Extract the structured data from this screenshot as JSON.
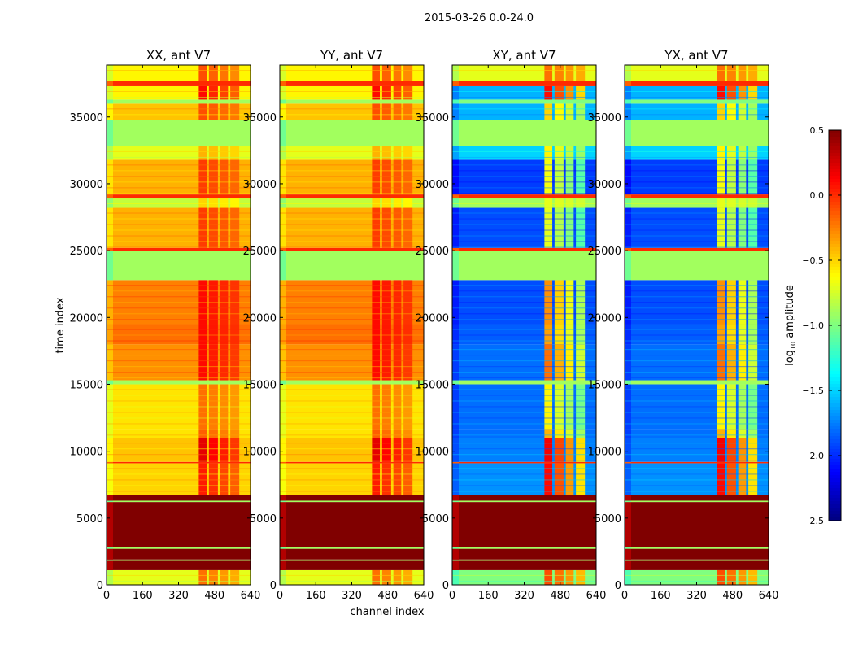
{
  "chart_data": {
    "type": "heatmap",
    "title": "2015-03-26 0.0-24.0",
    "xlabel": "channel index",
    "ylabel": "time index",
    "xlim": [
      0,
      640
    ],
    "ylim": [
      0,
      38880
    ],
    "xticks": [
      "0",
      "160",
      "320",
      "480",
      "640"
    ],
    "xtick_values": [
      0,
      160,
      320,
      480,
      640
    ],
    "yticks": [
      "0",
      "5000",
      "10000",
      "15000",
      "20000",
      "25000",
      "30000",
      "35000"
    ],
    "ytick_values": [
      0,
      5000,
      10000,
      15000,
      20000,
      25000,
      30000,
      35000
    ],
    "panels": [
      {
        "title": "XX, ant V7",
        "kind": "parallel"
      },
      {
        "title": "YY, ant V7",
        "kind": "parallel"
      },
      {
        "title": "XY, ant V7",
        "kind": "cross"
      },
      {
        "title": "YX, ant V7",
        "kind": "cross"
      }
    ],
    "colorbar": {
      "label": "log10 amplitude",
      "label_main": "log",
      "label_sub": "10",
      "label_rest": " amplitude",
      "range": [
        -2.5,
        0.5
      ],
      "ticks": [
        "0.5",
        "0.0",
        "−0.5",
        "−1.0",
        "−1.5",
        "−2.0",
        "−2.5"
      ],
      "tick_values": [
        0.5,
        0,
        -0.5,
        -1,
        -1.5,
        -2,
        -2.5
      ],
      "colormap": "jet"
    },
    "enhanced_channel_blocks": [
      [
        410,
        445
      ],
      [
        455,
        495
      ],
      [
        505,
        540
      ],
      [
        550,
        590
      ]
    ],
    "time_bands": [
      [
        0,
        1100,
        -0.7,
        -1.0,
        0.5,
        0.9
      ],
      [
        1100,
        1800,
        0.5,
        0.5,
        0,
        0
      ],
      [
        1800,
        1900,
        -0.9,
        -0.9,
        0,
        0
      ],
      [
        1900,
        2700,
        0.5,
        0.5,
        0,
        0
      ],
      [
        2700,
        2800,
        -0.9,
        -0.9,
        0,
        0
      ],
      [
        2800,
        6200,
        0.5,
        0.5,
        0,
        0
      ],
      [
        6200,
        6300,
        -0.9,
        -0.9,
        0,
        0
      ],
      [
        6300,
        6700,
        0.5,
        0.5,
        0,
        0
      ],
      [
        6700,
        9100,
        -0.5,
        -1.7,
        0.55,
        1.8
      ],
      [
        9100,
        9200,
        0.0,
        0.0,
        0,
        0
      ],
      [
        9200,
        11000,
        -0.45,
        -1.75,
        0.65,
        1.9
      ],
      [
        11000,
        11600,
        -0.55,
        -1.8,
        0.4,
        1.4
      ],
      [
        11600,
        15000,
        -0.55,
        -1.8,
        0.35,
        1.2
      ],
      [
        15000,
        15300,
        -0.9,
        -0.9,
        0,
        0
      ],
      [
        15300,
        18000,
        -0.3,
        -1.8,
        0.4,
        1.6
      ],
      [
        18000,
        19500,
        -0.2,
        -1.85,
        0.3,
        1.5
      ],
      [
        19500,
        22800,
        -0.25,
        -1.9,
        0.35,
        1.6
      ],
      [
        22800,
        25000,
        -0.9,
        -0.9,
        0,
        0
      ],
      [
        25000,
        25200,
        0.0,
        0.0,
        0,
        0
      ],
      [
        25200,
        28200,
        -0.4,
        -1.9,
        0.35,
        1.2
      ],
      [
        28200,
        28900,
        -0.8,
        -0.9,
        0.3,
        0.2
      ],
      [
        28900,
        29200,
        0.0,
        0.0,
        0,
        0
      ],
      [
        29200,
        31800,
        -0.4,
        -1.95,
        0.35,
        1.3
      ],
      [
        31800,
        32800,
        -0.7,
        -1.5,
        0.3,
        0.9
      ],
      [
        32800,
        34800,
        -0.9,
        -0.9,
        0,
        0
      ],
      [
        34800,
        36000,
        -0.45,
        -1.6,
        0.35,
        1.1
      ],
      [
        36000,
        36300,
        -0.9,
        -1.0,
        0,
        0
      ],
      [
        36300,
        37300,
        -0.6,
        -1.6,
        0.7,
        1.7
      ],
      [
        37300,
        37700,
        0.0,
        0.0,
        0,
        0
      ],
      [
        37700,
        38880,
        -0.6,
        -0.7,
        0.5,
        0.5
      ]
    ]
  }
}
